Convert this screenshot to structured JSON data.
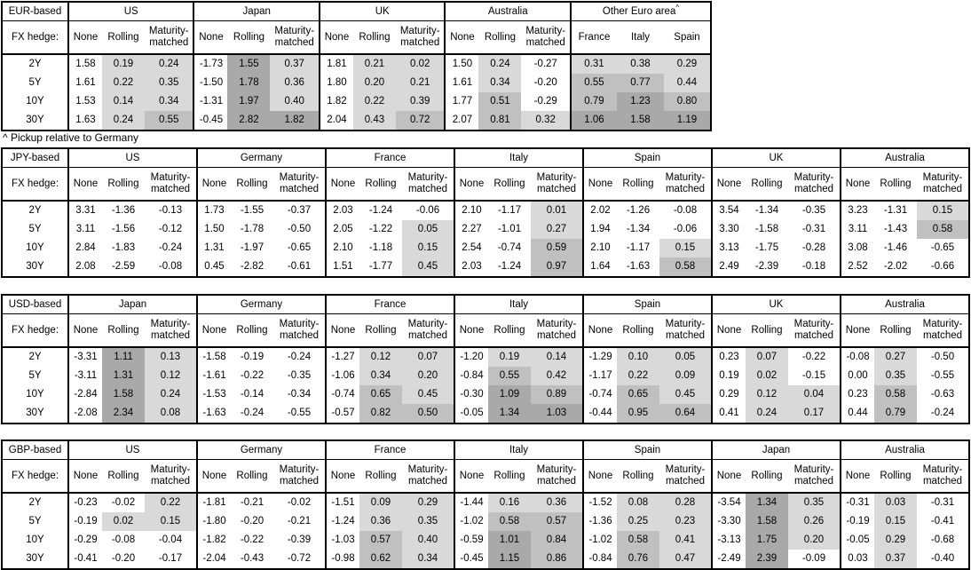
{
  "footnote": "^ Pickup relative to Germany",
  "fx_hedge_label": "FX hedge:",
  "tenors": [
    "2Y",
    "5Y",
    "10Y",
    "30Y"
  ],
  "hedge_columns": [
    "None",
    "Rolling",
    "Maturity-matched"
  ],
  "shading": {
    "description": "cell background by value: <=0 white, 0-0.5 light, 0.5-1.0 medium, >=1.0 dark; applied only to shaded columns",
    "white": "#FFFFFF",
    "light": "#D9D9D9",
    "medium": "#C0C0C0",
    "dark": "#A9A9A9",
    "border_color": "#000000"
  },
  "tables": [
    {
      "base_label": "EUR-based",
      "groups": [
        {
          "name": "US",
          "columns": [
            "None",
            "Rolling",
            "Maturity-matched"
          ],
          "shaded_columns": [
            false,
            true,
            true
          ],
          "rows": [
            [
              "1.58",
              "0.19",
              "0.24"
            ],
            [
              "1.61",
              "0.22",
              "0.35"
            ],
            [
              "1.53",
              "0.14",
              "0.34"
            ],
            [
              "1.63",
              "0.24",
              "0.55"
            ]
          ]
        },
        {
          "name": "Japan",
          "columns": [
            "None",
            "Rolling",
            "Maturity-matched"
          ],
          "shaded_columns": [
            false,
            true,
            true
          ],
          "rows": [
            [
              "-1.73",
              "1.55",
              "0.37"
            ],
            [
              "-1.50",
              "1.78",
              "0.36"
            ],
            [
              "-1.31",
              "1.97",
              "0.40"
            ],
            [
              "-0.45",
              "2.82",
              "1.82"
            ]
          ]
        },
        {
          "name": "UK",
          "columns": [
            "None",
            "Rolling",
            "Maturity-matched"
          ],
          "shaded_columns": [
            false,
            true,
            true
          ],
          "rows": [
            [
              "1.81",
              "0.21",
              "0.02"
            ],
            [
              "1.80",
              "0.20",
              "0.21"
            ],
            [
              "1.82",
              "0.22",
              "0.39"
            ],
            [
              "2.04",
              "0.43",
              "0.72"
            ]
          ]
        },
        {
          "name": "Australia",
          "columns": [
            "None",
            "Rolling",
            "Maturity-matched"
          ],
          "shaded_columns": [
            false,
            true,
            true
          ],
          "rows": [
            [
              "1.50",
              "0.24",
              "-0.27"
            ],
            [
              "1.61",
              "0.34",
              "-0.20"
            ],
            [
              "1.77",
              "0.51",
              "-0.29"
            ],
            [
              "2.07",
              "0.81",
              "0.32"
            ]
          ]
        },
        {
          "name": "Other Euro area",
          "footnote_marker": "^",
          "columns": [
            "France",
            "Italy",
            "Spain"
          ],
          "shaded_columns": [
            true,
            true,
            true
          ],
          "rows": [
            [
              "0.31",
              "0.38",
              "0.29"
            ],
            [
              "0.55",
              "0.77",
              "0.44"
            ],
            [
              "0.79",
              "1.23",
              "0.80"
            ],
            [
              "1.06",
              "1.58",
              "1.19"
            ]
          ]
        }
      ]
    },
    {
      "base_label": "JPY-based",
      "groups": [
        {
          "name": "US",
          "columns": [
            "None",
            "Rolling",
            "Maturity-matched"
          ],
          "shaded_columns": [
            false,
            true,
            true
          ],
          "rows": [
            [
              "3.31",
              "-1.36",
              "-0.13"
            ],
            [
              "3.11",
              "-1.56",
              "-0.12"
            ],
            [
              "2.84",
              "-1.83",
              "-0.24"
            ],
            [
              "2.08",
              "-2.59",
              "-0.08"
            ]
          ]
        },
        {
          "name": "Germany",
          "columns": [
            "None",
            "Rolling",
            "Maturity-matched"
          ],
          "shaded_columns": [
            false,
            true,
            true
          ],
          "rows": [
            [
              "1.73",
              "-1.55",
              "-0.37"
            ],
            [
              "1.50",
              "-1.78",
              "-0.50"
            ],
            [
              "1.31",
              "-1.97",
              "-0.65"
            ],
            [
              "0.45",
              "-2.82",
              "-0.61"
            ]
          ]
        },
        {
          "name": "France",
          "columns": [
            "None",
            "Rolling",
            "Maturity-matched"
          ],
          "shaded_columns": [
            false,
            true,
            true
          ],
          "rows": [
            [
              "2.03",
              "-1.24",
              "-0.06"
            ],
            [
              "2.05",
              "-1.22",
              "0.05"
            ],
            [
              "2.10",
              "-1.18",
              "0.15"
            ],
            [
              "1.51",
              "-1.77",
              "0.45"
            ]
          ]
        },
        {
          "name": "Italy",
          "columns": [
            "None",
            "Rolling",
            "Maturity-matched"
          ],
          "shaded_columns": [
            false,
            true,
            true
          ],
          "rows": [
            [
              "2.10",
              "-1.17",
              "0.01"
            ],
            [
              "2.27",
              "-1.01",
              "0.27"
            ],
            [
              "2.54",
              "-0.74",
              "0.59"
            ],
            [
              "2.03",
              "-1.24",
              "0.97"
            ]
          ]
        },
        {
          "name": "Spain",
          "columns": [
            "None",
            "Rolling",
            "Maturity-matched"
          ],
          "shaded_columns": [
            false,
            true,
            true
          ],
          "rows": [
            [
              "2.02",
              "-1.26",
              "-0.08"
            ],
            [
              "1.94",
              "-1.34",
              "-0.06"
            ],
            [
              "2.10",
              "-1.17",
              "0.15"
            ],
            [
              "1.64",
              "-1.63",
              "0.58"
            ]
          ]
        },
        {
          "name": "UK",
          "columns": [
            "None",
            "Rolling",
            "Maturity-matched"
          ],
          "shaded_columns": [
            false,
            true,
            true
          ],
          "rows": [
            [
              "3.54",
              "-1.34",
              "-0.35"
            ],
            [
              "3.30",
              "-1.58",
              "-0.31"
            ],
            [
              "3.13",
              "-1.75",
              "-0.28"
            ],
            [
              "2.49",
              "-2.39",
              "-0.18"
            ]
          ]
        },
        {
          "name": "Australia",
          "columns": [
            "None",
            "Rolling",
            "Maturity-matched"
          ],
          "shaded_columns": [
            false,
            true,
            true
          ],
          "rows": [
            [
              "3.23",
              "-1.31",
              "0.15"
            ],
            [
              "3.11",
              "-1.43",
              "0.58"
            ],
            [
              "3.08",
              "-1.46",
              "-0.65"
            ],
            [
              "2.52",
              "-2.02",
              "-0.66"
            ]
          ]
        }
      ]
    },
    {
      "base_label": "USD-based",
      "groups": [
        {
          "name": "Japan",
          "columns": [
            "None",
            "Rolling",
            "Maturity-matched"
          ],
          "shaded_columns": [
            false,
            true,
            true
          ],
          "rows": [
            [
              "-3.31",
              "1.11",
              "0.13"
            ],
            [
              "-3.11",
              "1.31",
              "0.12"
            ],
            [
              "-2.84",
              "1.58",
              "0.24"
            ],
            [
              "-2.08",
              "2.34",
              "0.08"
            ]
          ]
        },
        {
          "name": "Germany",
          "columns": [
            "None",
            "Rolling",
            "Maturity-matched"
          ],
          "shaded_columns": [
            false,
            true,
            true
          ],
          "rows": [
            [
              "-1.58",
              "-0.19",
              "-0.24"
            ],
            [
              "-1.61",
              "-0.22",
              "-0.35"
            ],
            [
              "-1.53",
              "-0.14",
              "-0.34"
            ],
            [
              "-1.63",
              "-0.24",
              "-0.55"
            ]
          ]
        },
        {
          "name": "France",
          "columns": [
            "None",
            "Rolling",
            "Maturity-matched"
          ],
          "shaded_columns": [
            false,
            true,
            true
          ],
          "rows": [
            [
              "-1.27",
              "0.12",
              "0.07"
            ],
            [
              "-1.06",
              "0.34",
              "0.20"
            ],
            [
              "-0.74",
              "0.65",
              "0.45"
            ],
            [
              "-0.57",
              "0.82",
              "0.50"
            ]
          ]
        },
        {
          "name": "Italy",
          "columns": [
            "None",
            "Rolling",
            "Maturity-matched"
          ],
          "shaded_columns": [
            false,
            true,
            true
          ],
          "rows": [
            [
              "-1.20",
              "0.19",
              "0.14"
            ],
            [
              "-0.84",
              "0.55",
              "0.42"
            ],
            [
              "-0.30",
              "1.09",
              "0.89"
            ],
            [
              "-0.05",
              "1.34",
              "1.03"
            ]
          ]
        },
        {
          "name": "Spain",
          "columns": [
            "None",
            "Rolling",
            "Maturity-matched"
          ],
          "shaded_columns": [
            false,
            true,
            true
          ],
          "rows": [
            [
              "-1.29",
              "0.10",
              "0.05"
            ],
            [
              "-1.17",
              "0.22",
              "0.09"
            ],
            [
              "-0.74",
              "0.65",
              "0.45"
            ],
            [
              "-0.44",
              "0.95",
              "0.64"
            ]
          ]
        },
        {
          "name": "UK",
          "columns": [
            "None",
            "Rolling",
            "Maturity-matched"
          ],
          "shaded_columns": [
            false,
            true,
            true
          ],
          "rows": [
            [
              "0.23",
              "0.07",
              "-0.22"
            ],
            [
              "0.19",
              "0.02",
              "-0.15"
            ],
            [
              "0.29",
              "0.12",
              "0.04"
            ],
            [
              "0.41",
              "0.24",
              "0.17"
            ]
          ]
        },
        {
          "name": "Australia",
          "columns": [
            "None",
            "Rolling",
            "Maturity-matched"
          ],
          "shaded_columns": [
            false,
            true,
            true
          ],
          "rows": [
            [
              "-0.08",
              "0.27",
              "-0.50"
            ],
            [
              "0.00",
              "0.35",
              "-0.55"
            ],
            [
              "0.23",
              "0.58",
              "-0.63"
            ],
            [
              "0.44",
              "0.79",
              "-0.24"
            ]
          ]
        }
      ]
    },
    {
      "base_label": "GBP-based",
      "groups": [
        {
          "name": "US",
          "columns": [
            "None",
            "Rolling",
            "Maturity-matched"
          ],
          "shaded_columns": [
            false,
            true,
            true
          ],
          "rows": [
            [
              "-0.23",
              "-0.02",
              "0.22"
            ],
            [
              "-0.19",
              "0.02",
              "0.15"
            ],
            [
              "-0.29",
              "-0.08",
              "-0.04"
            ],
            [
              "-0.41",
              "-0.20",
              "-0.17"
            ]
          ]
        },
        {
          "name": "Germany",
          "columns": [
            "None",
            "Rolling",
            "Maturity-matched"
          ],
          "shaded_columns": [
            false,
            true,
            true
          ],
          "rows": [
            [
              "-1.81",
              "-0.21",
              "-0.02"
            ],
            [
              "-1.80",
              "-0.20",
              "-0.21"
            ],
            [
              "-1.82",
              "-0.22",
              "-0.39"
            ],
            [
              "-2.04",
              "-0.43",
              "-0.72"
            ]
          ]
        },
        {
          "name": "France",
          "columns": [
            "None",
            "Rolling",
            "Maturity-matched"
          ],
          "shaded_columns": [
            false,
            true,
            true
          ],
          "rows": [
            [
              "-1.51",
              "0.09",
              "0.29"
            ],
            [
              "-1.24",
              "0.36",
              "0.35"
            ],
            [
              "-1.03",
              "0.57",
              "0.40"
            ],
            [
              "-0.98",
              "0.62",
              "0.34"
            ]
          ]
        },
        {
          "name": "Italy",
          "columns": [
            "None",
            "Rolling",
            "Maturity-matched"
          ],
          "shaded_columns": [
            false,
            true,
            true
          ],
          "rows": [
            [
              "-1.44",
              "0.16",
              "0.36"
            ],
            [
              "-1.02",
              "0.58",
              "0.57"
            ],
            [
              "-0.59",
              "1.01",
              "0.84"
            ],
            [
              "-0.45",
              "1.15",
              "0.86"
            ]
          ]
        },
        {
          "name": "Spain",
          "columns": [
            "None",
            "Rolling",
            "Maturity-matched"
          ],
          "shaded_columns": [
            false,
            true,
            true
          ],
          "rows": [
            [
              "-1.52",
              "0.08",
              "0.28"
            ],
            [
              "-1.36",
              "0.25",
              "0.23"
            ],
            [
              "-1.02",
              "0.58",
              "0.41"
            ],
            [
              "-0.84",
              "0.76",
              "0.47"
            ]
          ]
        },
        {
          "name": "Japan",
          "columns": [
            "None",
            "Rolling",
            "Maturity-matched"
          ],
          "shaded_columns": [
            false,
            true,
            true
          ],
          "rows": [
            [
              "-3.54",
              "1.34",
              "0.35"
            ],
            [
              "-3.30",
              "1.58",
              "0.26"
            ],
            [
              "-3.13",
              "1.75",
              "0.20"
            ],
            [
              "-2.49",
              "2.39",
              "-0.09"
            ]
          ]
        },
        {
          "name": "Australia",
          "columns": [
            "None",
            "Rolling",
            "Maturity-matched"
          ],
          "shaded_columns": [
            false,
            true,
            true
          ],
          "rows": [
            [
              "-0.31",
              "0.03",
              "-0.31"
            ],
            [
              "-0.19",
              "0.15",
              "-0.41"
            ],
            [
              "-0.05",
              "0.29",
              "-0.68"
            ],
            [
              "0.03",
              "0.37",
              "-0.40"
            ]
          ]
        }
      ]
    }
  ]
}
